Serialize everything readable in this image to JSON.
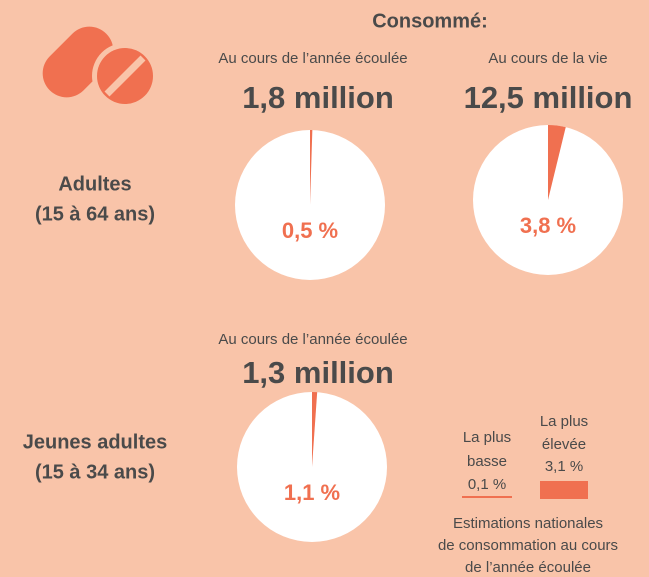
{
  "header": {
    "title": "Consommé:",
    "period_year": "Au cours de l’année écoulée",
    "period_life": "Au cours de la vie",
    "count_year": "1,8 million",
    "count_life": "12,5 million"
  },
  "adults": {
    "label": [
      "Adultes",
      "(15 à 64 ans)"
    ]
  },
  "young": {
    "label": [
      "Jeunes adultes",
      "(15 à 34 ans)"
    ],
    "period": "Au cours de l’année écoulée",
    "count": "1,3 million"
  },
  "chart_data": [
    {
      "type": "pie",
      "values": [
        0.5
      ],
      "value_labels": [
        "0,5 %"
      ],
      "color": "#f07050"
    },
    {
      "type": "pie",
      "values": [
        3.8
      ],
      "value_labels": [
        "3,8 %"
      ],
      "color": "#f07050"
    },
    {
      "type": "pie",
      "values": [
        1.1
      ],
      "value_labels": [
        "1,1 %"
      ],
      "color": "#f07050"
    }
  ],
  "legend": {
    "low": {
      "label": [
        "La plus",
        "basse"
      ],
      "value": 0.1,
      "value_label": "0,1 %"
    },
    "high": {
      "label": [
        "La plus",
        "élevée"
      ],
      "value": 3.1,
      "value_label": "3,1 %"
    }
  },
  "note": [
    "Estimations nationales",
    "de consommation au cours",
    "de l’année écoulée"
  ]
}
